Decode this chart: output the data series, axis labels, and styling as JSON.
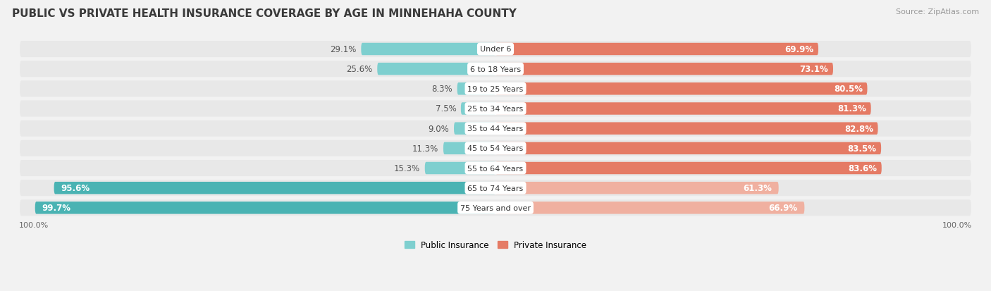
{
  "title": "PUBLIC VS PRIVATE HEALTH INSURANCE COVERAGE BY AGE IN MINNEHAHA COUNTY",
  "source": "Source: ZipAtlas.com",
  "categories": [
    "Under 6",
    "6 to 18 Years",
    "19 to 25 Years",
    "25 to 34 Years",
    "35 to 44 Years",
    "45 to 54 Years",
    "55 to 64 Years",
    "65 to 74 Years",
    "75 Years and over"
  ],
  "public_values": [
    29.1,
    25.6,
    8.3,
    7.5,
    9.0,
    11.3,
    15.3,
    95.6,
    99.7
  ],
  "private_values": [
    69.9,
    73.1,
    80.5,
    81.3,
    82.8,
    83.5,
    83.6,
    61.3,
    66.9
  ],
  "public_color_dark": "#4ab3b3",
  "public_color_light": "#7ecfcf",
  "private_color_dark": "#e57b65",
  "private_color_light": "#f0b0a0",
  "row_bg": "#e8e8e8",
  "bg_color": "#f2f2f2",
  "label_fontsize": 8.5,
  "tick_fontsize": 8,
  "source_fontsize": 8,
  "title_fontsize": 11,
  "legend_public": "Public Insurance",
  "legend_private": "Private Insurance"
}
